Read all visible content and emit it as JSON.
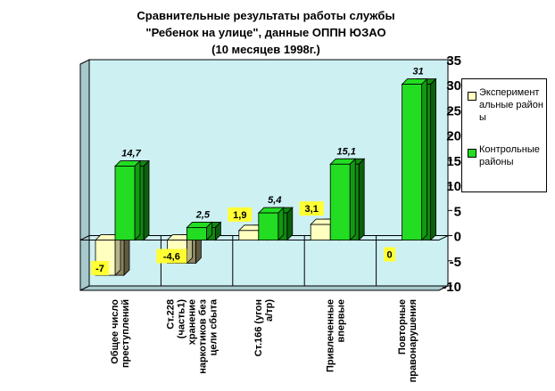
{
  "title_lines": [
    "Сравнительные результаты работы службы",
    "\"Ребенок на улице\", данные ОППН ЮЗАО",
    "(10 месяцев 1998г.)"
  ],
  "chart_data": {
    "type": "bar",
    "title": "Сравнительные результаты работы службы \"Ребенок на улице\", данные ОППН ЮЗАО (10 месяцев 1998г.)",
    "categories": [
      "Общее число преступлений",
      "Ст.228 (часть1) хранение наркотиков без цели сбыта",
      "Ст.166 (угон а/тр)",
      "Привлеченные впервые",
      "Повторные правонарушения"
    ],
    "series": [
      {
        "name": "Эксперимент альные районы",
        "values": [
          -7,
          -4.6,
          1.9,
          3.1,
          0
        ],
        "labels": [
          "-7",
          "-4,6",
          "1,9",
          "3,1",
          "0"
        ]
      },
      {
        "name": "Контрольные районы",
        "values": [
          14.7,
          2.5,
          5.4,
          15.1,
          31
        ],
        "labels": [
          "14,7",
          "2,5",
          "5,4",
          "15,1",
          "31"
        ]
      }
    ],
    "ylim": [
      -10,
      35
    ],
    "yticks": [
      -10,
      -5,
      0,
      5,
      10,
      15,
      20,
      25,
      30,
      35
    ],
    "grid": false,
    "legend": "right",
    "colors": {
      "experimental": "#ffffc0",
      "experimental_dark": "#8a8560",
      "control": "#22dd22",
      "control_dark": "#118811",
      "label_box": "#ffff33",
      "wall": "#cdf0f3"
    }
  }
}
